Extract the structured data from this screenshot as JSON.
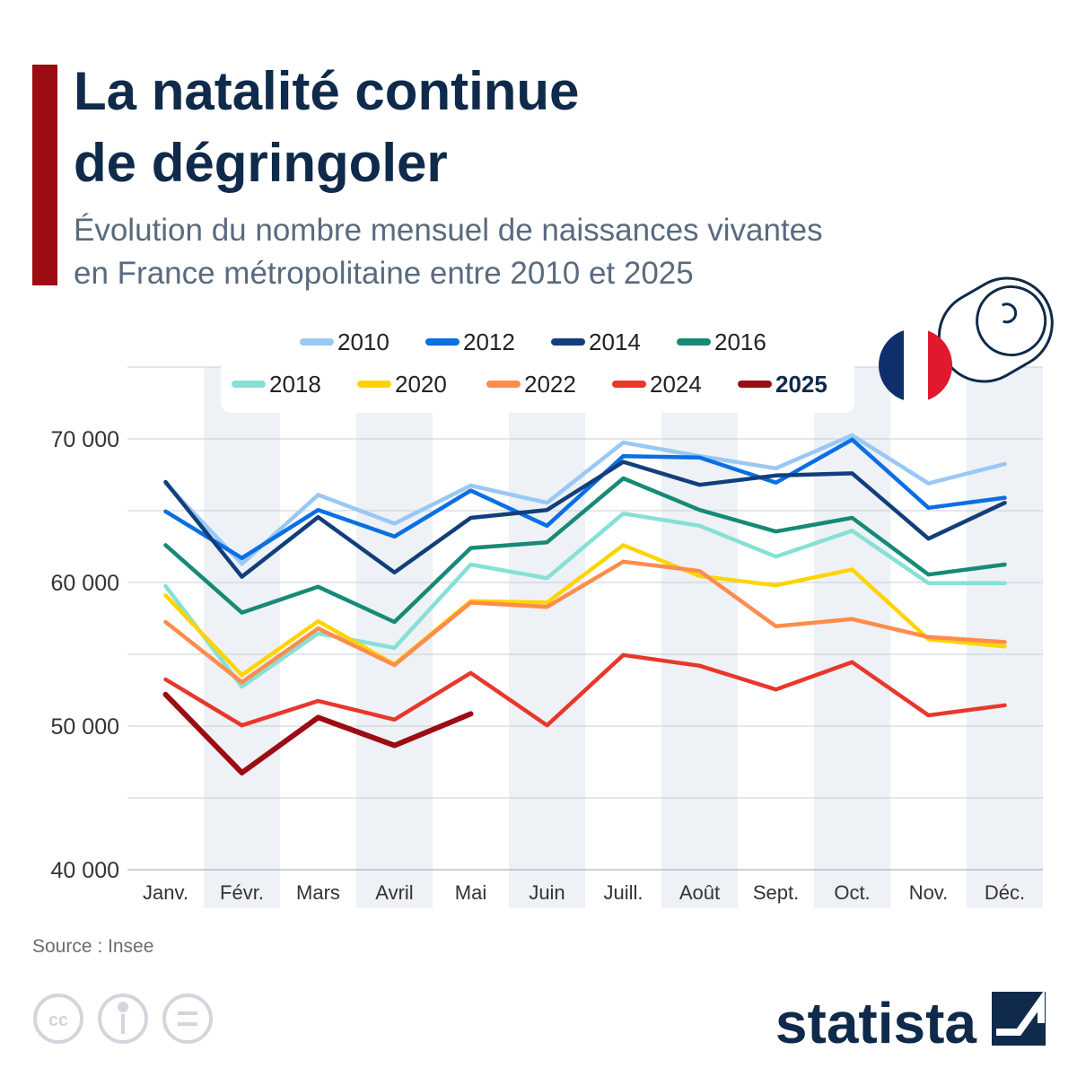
{
  "chart_data": {
    "type": "line",
    "title": [
      "La natalité continue",
      "de dégringoler"
    ],
    "subtitle": [
      "Évolution du nombre mensuel de naissances vivantes",
      "en France métropolitaine entre 2010 et 2025"
    ],
    "source": "Source : Insee",
    "brand": "statista",
    "categories": [
      "Janv.",
      "Févr.",
      "Mars",
      "Avril",
      "Mai",
      "Juin",
      "Juill.",
      "Août",
      "Sept.",
      "Oct.",
      "Nov.",
      "Déc."
    ],
    "ylim": [
      40000,
      75000
    ],
    "yticks": [
      {
        "value": 40000,
        "label": "40 000"
      },
      {
        "value": 50000,
        "label": "50 000"
      },
      {
        "value": 60000,
        "label": "60 000"
      },
      {
        "value": 70000,
        "label": "70 000"
      }
    ],
    "minor_yticks": [
      45000,
      55000,
      65000,
      75000
    ],
    "grid": true,
    "series": [
      {
        "name": "2010",
        "color": "#99c8f5",
        "values": [
          66900,
          61300,
          66100,
          64100,
          66750,
          65550,
          69750,
          68800,
          67950,
          70250,
          66900,
          68250
        ]
      },
      {
        "name": "2012",
        "color": "#0a6fe3",
        "values": [
          64950,
          61700,
          65050,
          63200,
          66400,
          63950,
          68800,
          68700,
          66950,
          69950,
          65200,
          65900
        ]
      },
      {
        "name": "2014",
        "color": "#123f7c",
        "values": [
          67000,
          60400,
          64550,
          60700,
          64500,
          65050,
          68400,
          66800,
          67450,
          67600,
          63050,
          65550
        ]
      },
      {
        "name": "2016",
        "color": "#168a77",
        "values": [
          62600,
          57900,
          59700,
          57250,
          62400,
          62800,
          67250,
          65050,
          63550,
          64500,
          60550,
          61250
        ]
      },
      {
        "name": "2018",
        "color": "#86e0d5",
        "values": [
          59750,
          52750,
          56450,
          55450,
          61250,
          60300,
          64800,
          63950,
          61800,
          63600,
          59950,
          59950
        ]
      },
      {
        "name": "2020",
        "color": "#ffd400",
        "values": [
          59100,
          53550,
          57300,
          54300,
          58700,
          58600,
          62600,
          60450,
          59800,
          60900,
          56050,
          55550
        ]
      },
      {
        "name": "2022",
        "color": "#ff8c4c",
        "values": [
          57250,
          53050,
          56800,
          54250,
          58600,
          58300,
          61450,
          60800,
          56950,
          57450,
          56200,
          55850
        ]
      },
      {
        "name": "2024",
        "color": "#e8372b",
        "values": [
          53250,
          50050,
          51750,
          50450,
          53700,
          50050,
          54950,
          54200,
          52550,
          54450,
          50750,
          51450
        ]
      },
      {
        "name": "2025",
        "color": "#9b0d13",
        "emphasis": true,
        "values": [
          52200,
          46750,
          50600,
          48650,
          50850,
          null,
          null,
          null,
          null,
          null,
          null,
          null
        ]
      }
    ]
  }
}
